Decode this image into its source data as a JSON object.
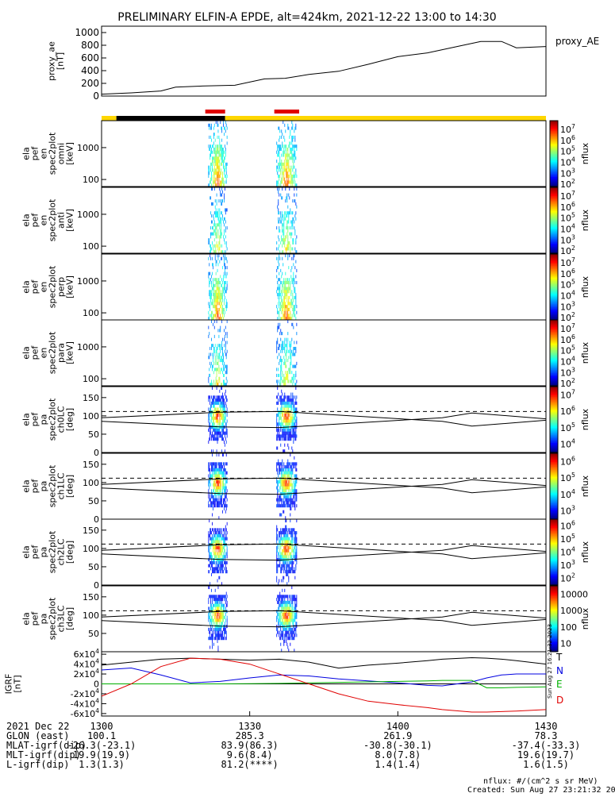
{
  "title": "PRELIMINARY ELFIN-A EPDE, alt=424km, 2021-12-22 13:00 to 14:30",
  "footer": {
    "units": "nflux: #/(cm^2 s sr MeV)",
    "created": "Created: Sun Aug 27 23:21:32 2023",
    "side_stamp": "Sun Aug 27 16:21:32 2023"
  },
  "colors": {
    "bar_yellow": "#ffd700",
    "bar_black": "#000000",
    "bar_red": "#e00000",
    "n_blue": "#0000e0",
    "e_green": "#00b000",
    "d_red": "#e00000"
  },
  "bars": {
    "segments": [
      {
        "from": 13.0,
        "to": 13.05,
        "color": "yellow"
      },
      {
        "from": 13.05,
        "to": 13.417,
        "color": "black"
      },
      {
        "from": 13.417,
        "to": 14.5,
        "color": "yellow"
      }
    ],
    "red": [
      [
        13.35,
        13.417
      ],
      [
        13.583,
        13.667
      ]
    ]
  },
  "chart_data": [
    {
      "type": "line",
      "ylabel": "proxy_ae [nT]",
      "legend": "proxy_AE",
      "yticks": [
        "0",
        "200",
        "400",
        "600",
        "800",
        "1000"
      ],
      "ylim": [
        0,
        1100
      ],
      "x": [
        13.0,
        13.1,
        13.2,
        13.25,
        13.35,
        13.45,
        13.55,
        13.62,
        13.7,
        13.8,
        13.9,
        14.0,
        14.1,
        14.2,
        14.28,
        14.35,
        14.4,
        14.5
      ],
      "values": [
        30,
        50,
        80,
        140,
        160,
        170,
        270,
        280,
        340,
        390,
        500,
        620,
        680,
        780,
        860,
        860,
        760,
        780
      ]
    },
    {
      "type": "heatmap",
      "ylabel": "ela pef en spec2plot omni [keV]",
      "yscale": "log",
      "yticks": [
        "100",
        "1000"
      ],
      "colorbar": {
        "label": "nflux",
        "scale": "log",
        "ticks": [
          "10^2",
          "10^3",
          "10^4",
          "10^5",
          "10^6",
          "10^7"
        ]
      }
    },
    {
      "type": "heatmap",
      "ylabel": "ela pef en spec2plot anti [keV]",
      "yscale": "log",
      "yticks": [
        "100",
        "1000"
      ],
      "colorbar": {
        "label": "nflux",
        "scale": "log",
        "ticks": [
          "10^2",
          "10^3",
          "10^4",
          "10^5",
          "10^6",
          "10^7"
        ]
      }
    },
    {
      "type": "heatmap",
      "ylabel": "ela pef en spec2plot perp [keV]",
      "yscale": "log",
      "yticks": [
        "100",
        "1000"
      ],
      "colorbar": {
        "label": "nflux",
        "scale": "log",
        "ticks": [
          "10^2",
          "10^3",
          "10^4",
          "10^5",
          "10^6",
          "10^7"
        ]
      }
    },
    {
      "type": "heatmap",
      "ylabel": "ela pef en spec2plot para [keV]",
      "yscale": "log",
      "yticks": [
        "100",
        "1000"
      ],
      "colorbar": {
        "label": "nflux",
        "scale": "log",
        "ticks": [
          "10^2",
          "10^3",
          "10^4",
          "10^5",
          "10^6",
          "10^7"
        ]
      }
    },
    {
      "type": "heatmap",
      "ylabel": "ela pef pa spec2plot ch0LC [deg]",
      "yticks": [
        "0",
        "50",
        "100",
        "150"
      ],
      "ylim": [
        0,
        180
      ],
      "colorbar": {
        "label": "nflux",
        "scale": "log",
        "ticks": [
          "10^4",
          "10^5",
          "10^6",
          "10^7"
        ]
      }
    },
    {
      "type": "heatmap",
      "ylabel": "ela pef pa spec2plot ch1LC [deg]",
      "yticks": [
        "0",
        "50",
        "100",
        "150"
      ],
      "ylim": [
        0,
        180
      ],
      "colorbar": {
        "label": "nflux",
        "scale": "log",
        "ticks": [
          "10^3",
          "10^4",
          "10^5",
          "10^6"
        ]
      }
    },
    {
      "type": "heatmap",
      "ylabel": "ela pef pa spec2plot ch2LC [deg]",
      "yticks": [
        "0",
        "50",
        "100",
        "150"
      ],
      "ylim": [
        0,
        180
      ],
      "colorbar": {
        "label": "nflux",
        "scale": "log",
        "ticks": [
          "10^2",
          "10^3",
          "10^4",
          "10^5",
          "10^6"
        ]
      }
    },
    {
      "type": "heatmap",
      "ylabel": "ela pef pa spec2plot ch3LC [deg]",
      "yticks": [
        "50",
        "100",
        "150"
      ],
      "ylim": [
        0,
        180
      ],
      "colorbar": {
        "label": "nflux",
        "scale": "log",
        "ticks": [
          "10",
          "100",
          "1000",
          "10000"
        ]
      }
    },
    {
      "type": "line",
      "ylabel": "IGRF [nT]",
      "yticks": [
        "-6x10^4",
        "-4x10^4",
        "-2x10^4",
        "0",
        "2x10^4",
        "4x10^4",
        "6x10^4"
      ],
      "ylim": [
        -65000,
        65000
      ],
      "x": [
        13.0,
        13.1,
        13.2,
        13.3,
        13.4,
        13.5,
        13.6,
        13.7,
        13.8,
        13.9,
        14.0,
        14.1,
        14.15,
        14.25,
        14.3,
        14.35,
        14.4,
        14.5
      ],
      "series": [
        {
          "name": "T",
          "values": [
            38000,
            44000,
            50000,
            52000,
            50000,
            48000,
            50000,
            44000,
            32000,
            38000,
            42000,
            47000,
            50000,
            53000,
            52000,
            50000,
            47000,
            40000
          ]
        },
        {
          "name": "N",
          "values": [
            28000,
            32000,
            18000,
            2000,
            5000,
            12000,
            18000,
            16000,
            10000,
            6000,
            2000,
            -3000,
            -4000,
            4000,
            12000,
            18000,
            20000,
            20000
          ]
        },
        {
          "name": "E",
          "values": [
            0,
            0,
            0,
            0,
            0,
            500,
            1000,
            2000,
            3000,
            4000,
            5000,
            6000,
            7000,
            7000,
            -8000,
            -8000,
            -7000,
            -6000
          ]
        },
        {
          "name": "D",
          "values": [
            -25000,
            0,
            35000,
            52000,
            50000,
            40000,
            20000,
            0,
            -20000,
            -35000,
            -42000,
            -48000,
            -52000,
            -57000,
            -57000,
            -56000,
            -55000,
            -52000
          ]
        }
      ]
    }
  ],
  "xaxis": {
    "date": "2021 Dec 22",
    "ticks": [
      "1300",
      "1330",
      "1400",
      "1430"
    ],
    "rows": [
      {
        "label": "GLON (east)",
        "values": [
          "100.1",
          "285.3",
          "261.9",
          "78.3"
        ]
      },
      {
        "label": "MLAT-igrf(dip)",
        "values": [
          "-26.3(-23.1)",
          "83.9(86.3)",
          "-30.8(-30.1)",
          "-37.4(-33.3)"
        ]
      },
      {
        "label": "MLT-igrf(dip)",
        "values": [
          "19.9(19.9)",
          "9.6(8.4)",
          "8.0(7.8)",
          "19.6(19.7)"
        ]
      },
      {
        "label": "L-igrf(dip)",
        "values": [
          "1.3(1.3)",
          "81.2(****)",
          "1.4(1.4)",
          "1.6(1.5)"
        ]
      }
    ]
  }
}
